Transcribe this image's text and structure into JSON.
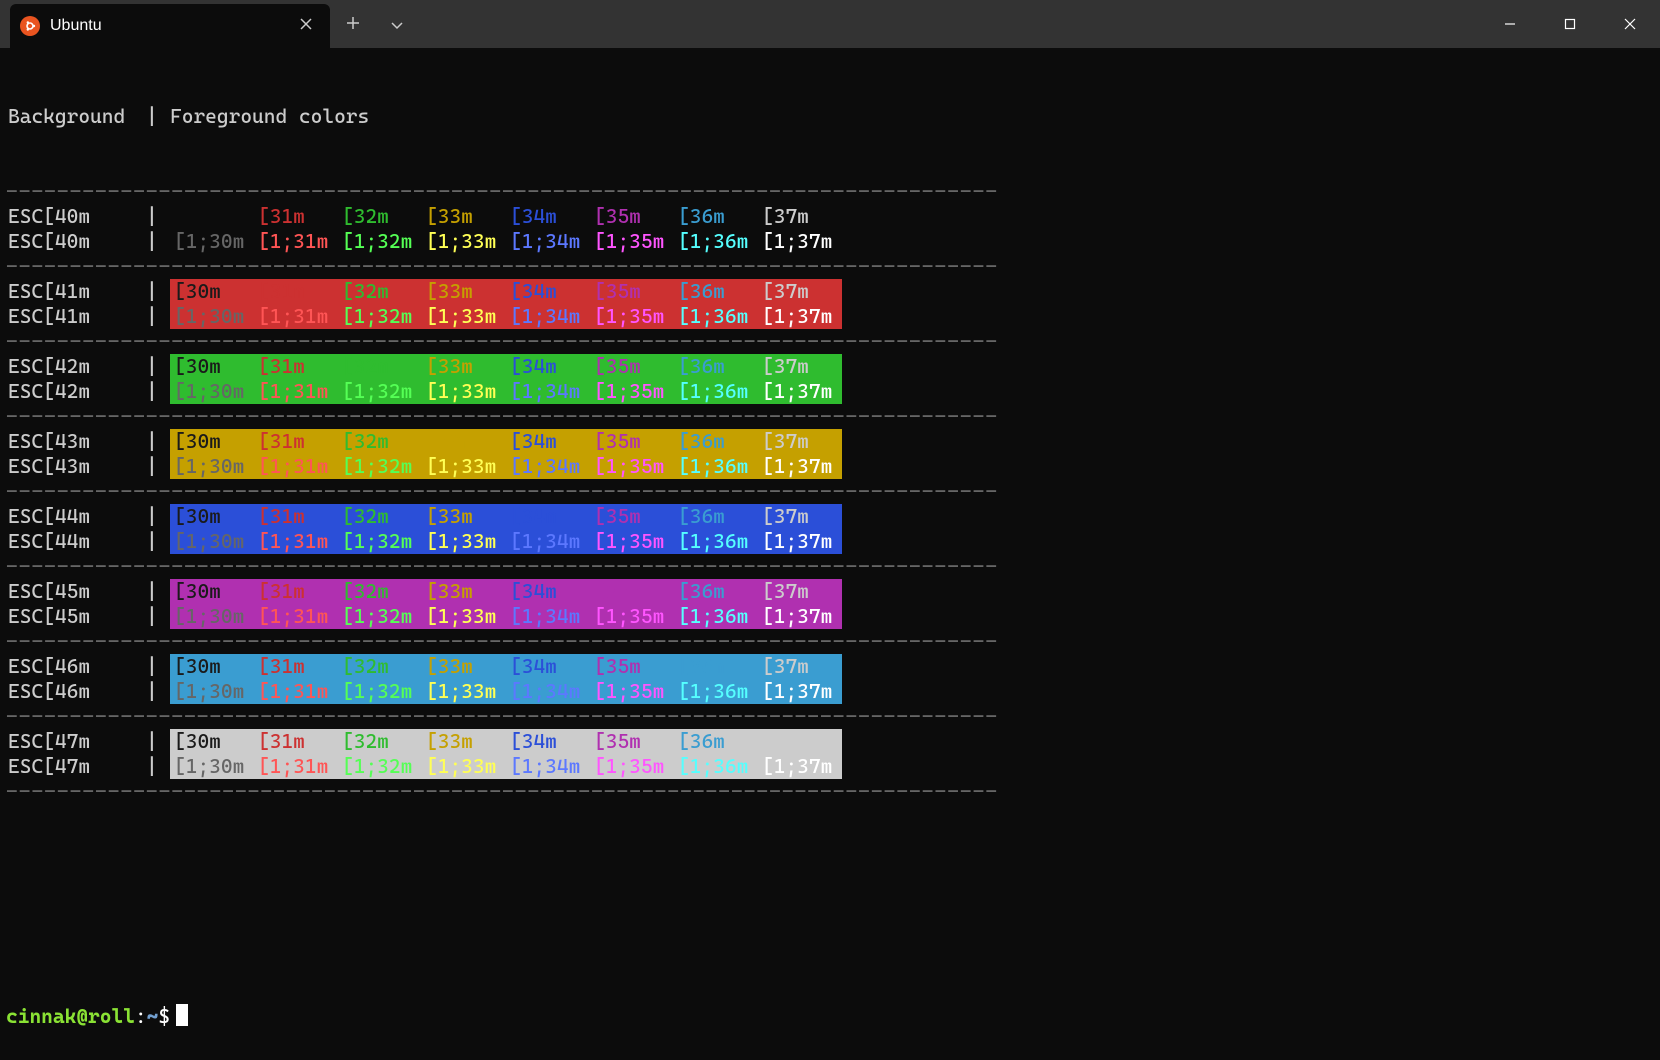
{
  "window": {
    "tab_title": "Ubuntu"
  },
  "header": {
    "left": "Background",
    "sep": "|",
    "right": "Foreground colors"
  },
  "dash_line": "------------------------------------------------------------------------------",
  "bg_codes": [
    "40",
    "41",
    "42",
    "43",
    "44",
    "45",
    "46",
    "47"
  ],
  "fg_codes": [
    "30",
    "31",
    "32",
    "33",
    "34",
    "35",
    "36",
    "37"
  ],
  "bg_colors": {
    "40": "#0c0c0c",
    "41": "#cc3131",
    "42": "#2fbc2f",
    "43": "#c5a000",
    "44": "#2b4fd8",
    "45": "#b030b0",
    "46": "#3a9dd1",
    "47": "#cccccc"
  },
  "fg_colors": {
    "30": "#1a1a1a",
    "31": "#cc3131",
    "32": "#2fbc2f",
    "33": "#c5a000",
    "34": "#2b4fd8",
    "35": "#b030b0",
    "36": "#3a9dd1",
    "37": "#cccccc"
  },
  "fg_bold_colors": {
    "30": "#666666",
    "31": "#ff5555",
    "32": "#55ff55",
    "33": "#ffff55",
    "34": "#5c78ff",
    "35": "#ff55ff",
    "36": "#55ffff",
    "37": "#ffffff"
  },
  "row_label_template_a": "ESC[{BG}m",
  "row_label_template_b": "ESC[{BG}m",
  "cell_template_normal": "[{FG}m",
  "cell_template_bold": "[1;{FG}m",
  "pipe_char": "|",
  "prompt": {
    "user": "cinnak@roll",
    "colon": ":",
    "path": "~",
    "dollar": "$"
  }
}
